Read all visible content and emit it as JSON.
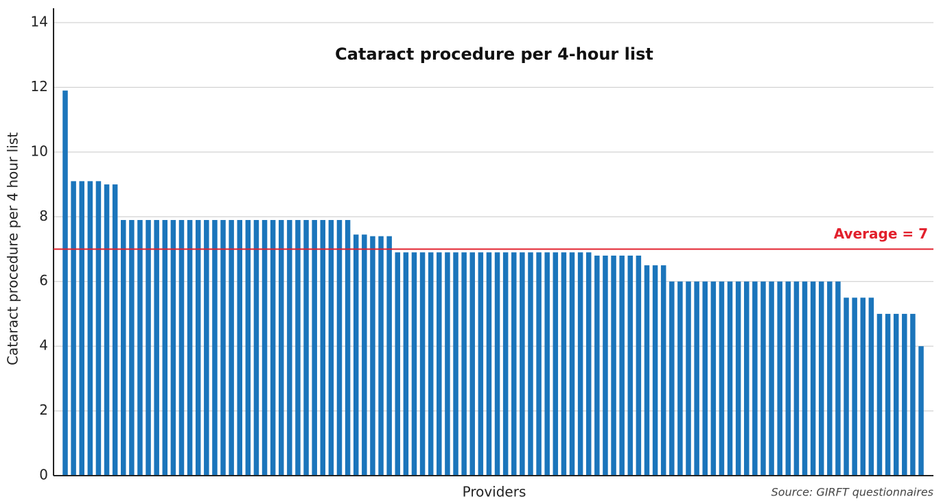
{
  "chart_data": {
    "type": "bar",
    "title": "Cataract procedure per 4-hour list",
    "y_label": "Cataract procedure per 4 hour list",
    "x_label": "Providers",
    "source": "Source: GIRFT questionnaires",
    "average": 7,
    "average_label": "Average = 7",
    "average_color": "#e2202c",
    "color": "#1b75bb",
    "grid": true,
    "ylim": [
      0,
      14
    ],
    "yticks": [
      0,
      2,
      4,
      6,
      8,
      10,
      12,
      14
    ],
    "categories": [
      null,
      null,
      null,
      null,
      null,
      null,
      null,
      null,
      null,
      null,
      null,
      null,
      null,
      null,
      null,
      null,
      null,
      null,
      null,
      null,
      null,
      null,
      null,
      null,
      null,
      null,
      null,
      null,
      null,
      null,
      null,
      null,
      null,
      null,
      null,
      null,
      null,
      null,
      null,
      null,
      null,
      null,
      null,
      null,
      null,
      null,
      null,
      null,
      null,
      null,
      null,
      null,
      null,
      null,
      null,
      null,
      null,
      null,
      null,
      null,
      null,
      null,
      null,
      null,
      null,
      null,
      null,
      null,
      null,
      null,
      null,
      null,
      null,
      null,
      null,
      null,
      null,
      null,
      null,
      null,
      null,
      null,
      null,
      null,
      null,
      null,
      null,
      null,
      null,
      null,
      null,
      null,
      null,
      null,
      null,
      null,
      null,
      null,
      null,
      null,
      null,
      null,
      null,
      null
    ],
    "values": [
      11.9,
      9.1,
      9.1,
      9.1,
      9.1,
      9,
      9,
      7.9,
      7.9,
      7.9,
      7.9,
      7.9,
      7.9,
      7.9,
      7.9,
      7.9,
      7.9,
      7.9,
      7.9,
      7.9,
      7.9,
      7.9,
      7.9,
      7.9,
      7.9,
      7.9,
      7.9,
      7.9,
      7.9,
      7.9,
      7.9,
      7.9,
      7.9,
      7.9,
      7.9,
      7.45,
      7.45,
      7.4,
      7.4,
      7.4,
      6.9,
      6.9,
      6.9,
      6.9,
      6.9,
      6.9,
      6.9,
      6.9,
      6.9,
      6.9,
      6.9,
      6.9,
      6.9,
      6.9,
      6.9,
      6.9,
      6.9,
      6.9,
      6.9,
      6.9,
      6.9,
      6.9,
      6.9,
      6.9,
      6.8,
      6.8,
      6.8,
      6.8,
      6.8,
      6.8,
      6.5,
      6.5,
      6.5,
      6,
      6,
      6,
      6,
      6,
      6,
      6,
      6,
      6,
      6,
      6,
      6,
      6,
      6,
      6,
      6,
      6,
      6,
      6,
      6,
      6,
      5.5,
      5.5,
      5.5,
      5.5,
      5,
      5,
      5,
      5,
      5,
      4
    ]
  }
}
